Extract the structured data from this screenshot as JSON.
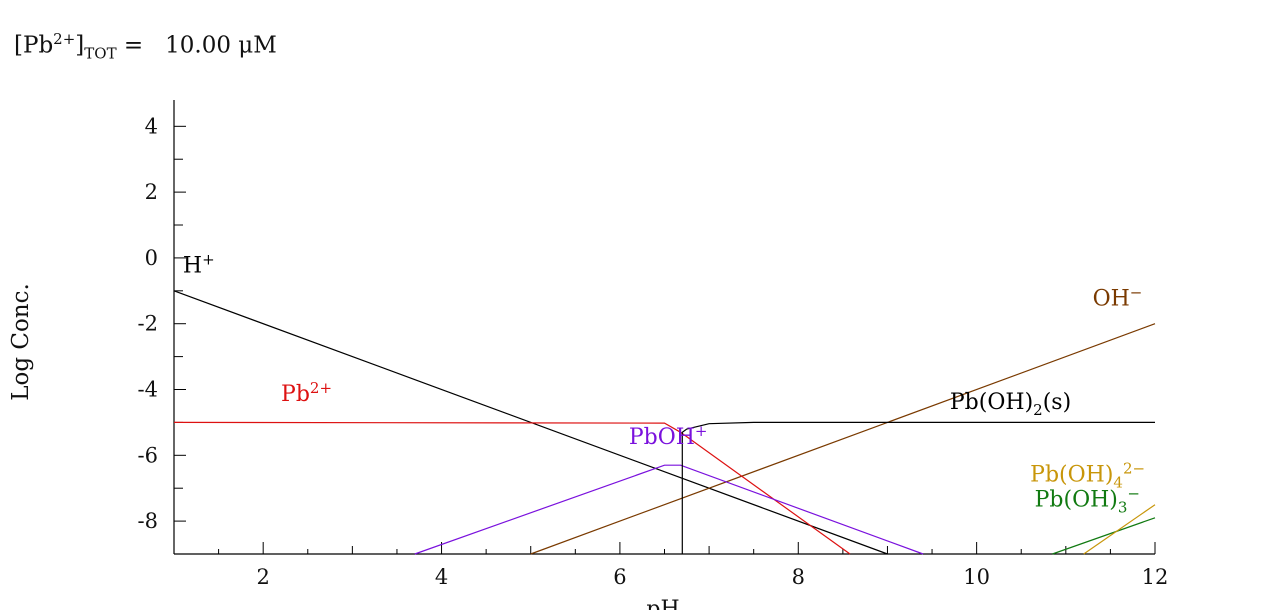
{
  "header": {
    "species": "[Pb",
    "charge": "2+",
    "close": "]",
    "sub": "TOT",
    "eq": " =",
    "value": "10.00 μM"
  },
  "chart_data": {
    "type": "line",
    "xlabel": "pH",
    "ylabel": "Log Conc.",
    "xlim": [
      1,
      12
    ],
    "ylim": [
      -9,
      4.8
    ],
    "xticks": [
      2,
      4,
      6,
      8,
      10,
      12
    ],
    "yticks": [
      4,
      2,
      0,
      -2,
      -4,
      -6,
      -8
    ],
    "series": [
      {
        "name": "H+",
        "label": "H",
        "sup": "+",
        "color": "#000000",
        "x": [
          1,
          9
        ],
        "y": [
          -1,
          -9
        ]
      },
      {
        "name": "OH-",
        "label": "OH",
        "sup": "−",
        "color": "#7a3a00",
        "x": [
          5,
          12
        ],
        "y": [
          -9,
          -2
        ]
      },
      {
        "name": "Pb2+",
        "label": "Pb",
        "sup": "2+",
        "color": "#dd1111",
        "x": [
          1,
          6.5,
          6.68,
          8.58
        ],
        "y": [
          -5,
          -5.02,
          -5.3,
          -9
        ]
      },
      {
        "name": "PbOH+",
        "label": "PbOH",
        "sup": "+",
        "color": "#7a11dd",
        "x": [
          3.7,
          6.5,
          6.68,
          9.4
        ],
        "y": [
          -9,
          -6.3,
          -6.3,
          -9
        ]
      },
      {
        "name": "Pb(OH)2(s)",
        "label": "Pb(OH)",
        "sub": "2",
        "tail": "(s)",
        "color": "#000000",
        "x": [
          6.7,
          6.7,
          6.75,
          7.0,
          7.5,
          12
        ],
        "y": [
          -9,
          -5.3,
          -5.2,
          -5.04,
          -5.0,
          -5.0
        ]
      },
      {
        "name": "Pb(OH)3-",
        "label": "Pb(OH)",
        "sub": "3",
        "sup": "−",
        "color": "#117a11",
        "x": [
          10.85,
          12
        ],
        "y": [
          -9,
          -7.9
        ]
      },
      {
        "name": "Pb(OH)4 2-",
        "label": "Pb(OH)",
        "sub": "4",
        "sup": "2−",
        "color": "#c8960a",
        "x": [
          11.2,
          12
        ],
        "y": [
          -9,
          -7.5
        ]
      }
    ]
  }
}
